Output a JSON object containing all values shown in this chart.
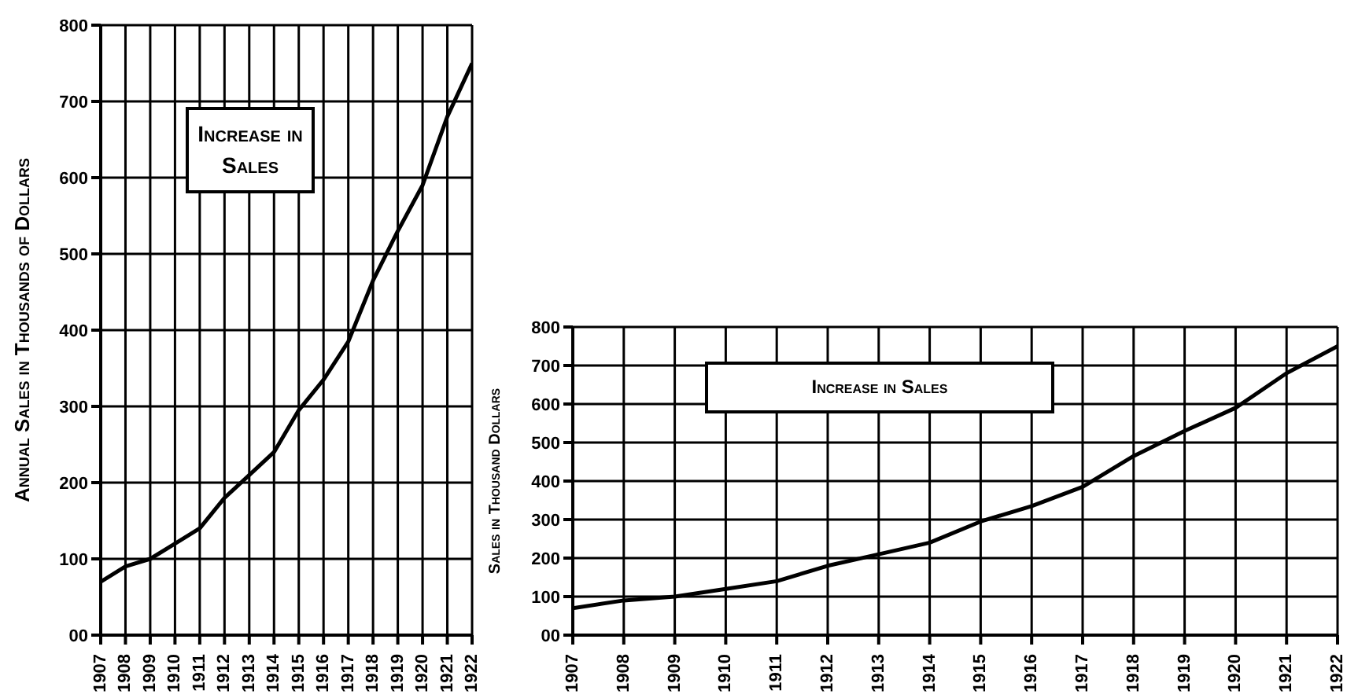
{
  "chart_data": [
    {
      "type": "line",
      "title": "Increase in Sales",
      "ylabel": "Annual Sales in Thousands of Dollars",
      "categories": [
        "1907",
        "1908",
        "1909",
        "1910",
        "1911",
        "1912",
        "1913",
        "1914",
        "1915",
        "1916",
        "1917",
        "1918",
        "1919",
        "1920",
        "1921",
        "1922"
      ],
      "series": [
        {
          "color": "#000000",
          "values": [
            70,
            90,
            100,
            120,
            140,
            180,
            210,
            240,
            295,
            335,
            385,
            465,
            530,
            590,
            680,
            750
          ]
        }
      ],
      "ylim": [
        0,
        800
      ],
      "yticks": [
        {
          "value": 0,
          "label": "00"
        },
        100,
        200,
        300,
        400,
        500,
        600,
        700,
        800
      ],
      "grid": true,
      "marker": "none",
      "line_style": "solid"
    },
    {
      "type": "line",
      "title": "Increase in Sales",
      "ylabel": "Sales in Thousand Dollars",
      "categories": [
        "1907",
        "1908",
        "1909",
        "1910",
        "1911",
        "1912",
        "1913",
        "1914",
        "1915",
        "1916",
        "1917",
        "1918",
        "1919",
        "1920",
        "1921",
        "1922"
      ],
      "series": [
        {
          "color": "#000000",
          "values": [
            70,
            90,
            100,
            120,
            140,
            180,
            210,
            240,
            295,
            335,
            385,
            465,
            530,
            590,
            680,
            750
          ]
        }
      ],
      "ylim": [
        0,
        800
      ],
      "yticks": [
        {
          "value": 0,
          "label": "00"
        },
        100,
        200,
        300,
        400,
        500,
        600,
        700,
        800
      ],
      "grid": true,
      "marker": "none",
      "line_style": "solid"
    }
  ]
}
